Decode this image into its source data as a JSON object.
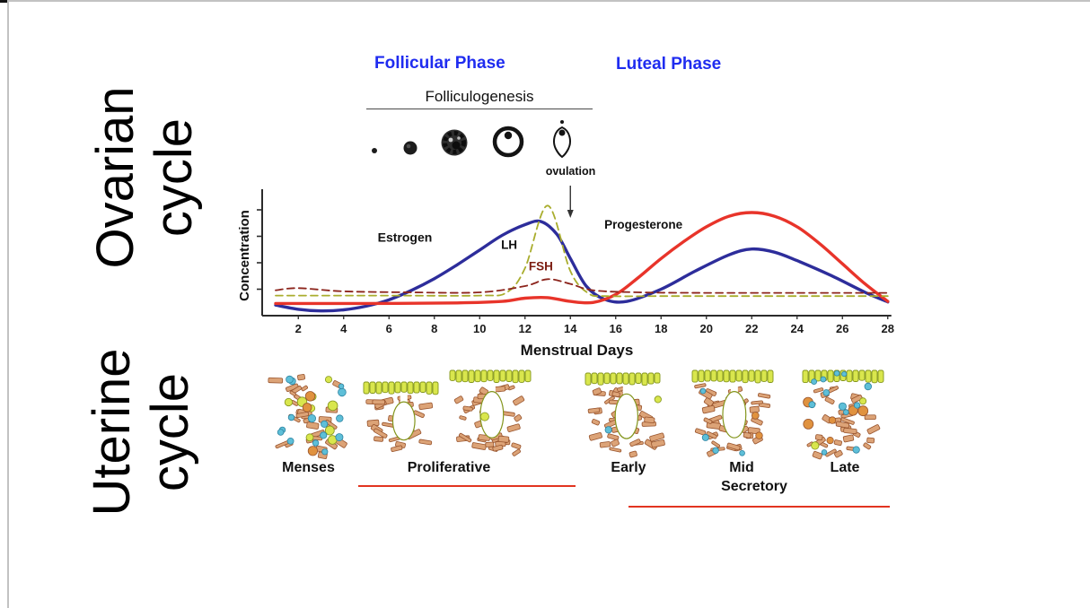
{
  "left_labels": {
    "ovarian": "Ovarian cycle",
    "uterine": "Uterine cycle"
  },
  "phases": {
    "follicular": "Follicular Phase",
    "luteal": "Luteal Phase",
    "color": "#1f2cf0"
  },
  "folliculogenesis": {
    "title": "Folliculogenesis",
    "ovulation_label": "ovulation",
    "ovulation_day": 14,
    "stages": [
      "primordial-follicle",
      "primary-follicle",
      "secondary-follicle",
      "graafian-follicle",
      "ovulating-follicle"
    ]
  },
  "chart_data": {
    "type": "line",
    "title": "",
    "xlabel": "Menstrual Days",
    "ylabel": "Concentration",
    "xlim": [
      1,
      28
    ],
    "ylim": [
      0,
      1.1
    ],
    "grid": false,
    "legend_position": "inline-labels",
    "x_ticks": [
      2,
      4,
      6,
      8,
      10,
      12,
      14,
      16,
      18,
      20,
      22,
      24,
      26,
      28
    ],
    "y_ticks": [
      0.25,
      0.5,
      0.75,
      1.0
    ],
    "series": [
      {
        "name": "Estrogen",
        "color": "#2d2d9b",
        "style": "solid",
        "width": 3.4,
        "points": [
          [
            1,
            0.1
          ],
          [
            2,
            0.06
          ],
          [
            3,
            0.045
          ],
          [
            4,
            0.055
          ],
          [
            5,
            0.09
          ],
          [
            6,
            0.15
          ],
          [
            7,
            0.24
          ],
          [
            8,
            0.35
          ],
          [
            9,
            0.48
          ],
          [
            10,
            0.62
          ],
          [
            11,
            0.76
          ],
          [
            12,
            0.86
          ],
          [
            12.7,
            0.89
          ],
          [
            13.4,
            0.77
          ],
          [
            14,
            0.54
          ],
          [
            14.7,
            0.28
          ],
          [
            15.5,
            0.155
          ],
          [
            16.5,
            0.135
          ],
          [
            18,
            0.25
          ],
          [
            19.5,
            0.42
          ],
          [
            21,
            0.575
          ],
          [
            22,
            0.63
          ],
          [
            23,
            0.6
          ],
          [
            24,
            0.52
          ],
          [
            25.5,
            0.38
          ],
          [
            27,
            0.22
          ],
          [
            28,
            0.13
          ]
        ]
      },
      {
        "name": "Progesterone",
        "color": "#e8342a",
        "style": "solid",
        "width": 3.4,
        "points": [
          [
            1,
            0.115
          ],
          [
            5,
            0.115
          ],
          [
            9,
            0.12
          ],
          [
            11,
            0.135
          ],
          [
            12,
            0.165
          ],
          [
            13,
            0.17
          ],
          [
            14,
            0.135
          ],
          [
            15,
            0.125
          ],
          [
            16,
            0.2
          ],
          [
            17,
            0.36
          ],
          [
            18,
            0.54
          ],
          [
            19,
            0.7
          ],
          [
            20,
            0.84
          ],
          [
            21,
            0.94
          ],
          [
            22,
            0.975
          ],
          [
            23,
            0.94
          ],
          [
            24,
            0.84
          ],
          [
            25,
            0.68
          ],
          [
            26,
            0.49
          ],
          [
            27,
            0.3
          ],
          [
            28,
            0.135
          ]
        ]
      },
      {
        "name": "LH",
        "color": "#a9ad2d",
        "style": "dashed",
        "width": 1.8,
        "points": [
          [
            1,
            0.19
          ],
          [
            6,
            0.19
          ],
          [
            10,
            0.19
          ],
          [
            11.2,
            0.22
          ],
          [
            12,
            0.45
          ],
          [
            13,
            1.04
          ],
          [
            14,
            0.42
          ],
          [
            14.8,
            0.21
          ],
          [
            15.6,
            0.185
          ],
          [
            18,
            0.185
          ],
          [
            21,
            0.185
          ],
          [
            24,
            0.185
          ],
          [
            28,
            0.185
          ]
        ]
      },
      {
        "name": "FSH",
        "color": "#8c241c",
        "style": "dashed",
        "width": 1.8,
        "points": [
          [
            1,
            0.24
          ],
          [
            2,
            0.26
          ],
          [
            4,
            0.23
          ],
          [
            7,
            0.22
          ],
          [
            10,
            0.22
          ],
          [
            12,
            0.28
          ],
          [
            13,
            0.345
          ],
          [
            14,
            0.3
          ],
          [
            15,
            0.24
          ],
          [
            17,
            0.22
          ],
          [
            20,
            0.215
          ],
          [
            24,
            0.215
          ],
          [
            28,
            0.215
          ]
        ]
      }
    ],
    "curve_labels": [
      {
        "text": "Estrogen",
        "day": 5.5,
        "v": 0.7,
        "anchor": "start",
        "color": "#111111",
        "size": 14
      },
      {
        "text": "LH",
        "day": 11.3,
        "v": 0.63,
        "anchor": "middle",
        "color": "#111111",
        "size": 13.5
      },
      {
        "text": "FSH",
        "day": 12.7,
        "v": 0.43,
        "anchor": "middle",
        "color": "#7c1d12",
        "size": 13.5
      },
      {
        "text": "Progesterone",
        "day": 15.5,
        "v": 0.82,
        "anchor": "start",
        "color": "#111111",
        "size": 13.5
      }
    ]
  },
  "uterine": {
    "labels": {
      "menses": "Menses",
      "proliferative": "Proliferative",
      "early": "Early",
      "mid": "Mid",
      "late": "Late",
      "secretory": "Secretory"
    },
    "panels": [
      {
        "name": "menses",
        "seed": 7,
        "bricks": 30,
        "blue": 15,
        "green": 9,
        "orange": 3,
        "gland": false,
        "epithelium": false
      },
      {
        "name": "proliferative-early",
        "seed": 11,
        "bricks": 24,
        "blue": 0,
        "green": 0,
        "orange": 0,
        "gland": true,
        "epithelium": true
      },
      {
        "name": "proliferative-late",
        "seed": 21,
        "bricks": 38,
        "blue": 0,
        "green": 1,
        "orange": 0,
        "gland": true,
        "epithelium": true
      },
      {
        "name": "early-secretory",
        "seed": 31,
        "bricks": 38,
        "blue": 1,
        "green": 1,
        "orange": 0,
        "gland": true,
        "epithelium": true
      },
      {
        "name": "mid-secretory",
        "seed": 41,
        "bricks": 38,
        "blue": 4,
        "green": 0,
        "orange": 2,
        "gland": true,
        "epithelium": true
      },
      {
        "name": "late-secretory",
        "seed": 51,
        "bricks": 32,
        "blue": 12,
        "green": 3,
        "orange": 6,
        "gland": false,
        "epithelium": true
      }
    ],
    "colors": {
      "brick": "#dca377",
      "brick_stroke": "#99552e",
      "epithelium": "#d9e64d",
      "epithelium_stroke": "#83951c",
      "blue_cell": "#5ebfd8",
      "blue_cell_stroke": "#2e84a2",
      "orange_cell": "#e0923f",
      "underline": "#e23420"
    }
  }
}
